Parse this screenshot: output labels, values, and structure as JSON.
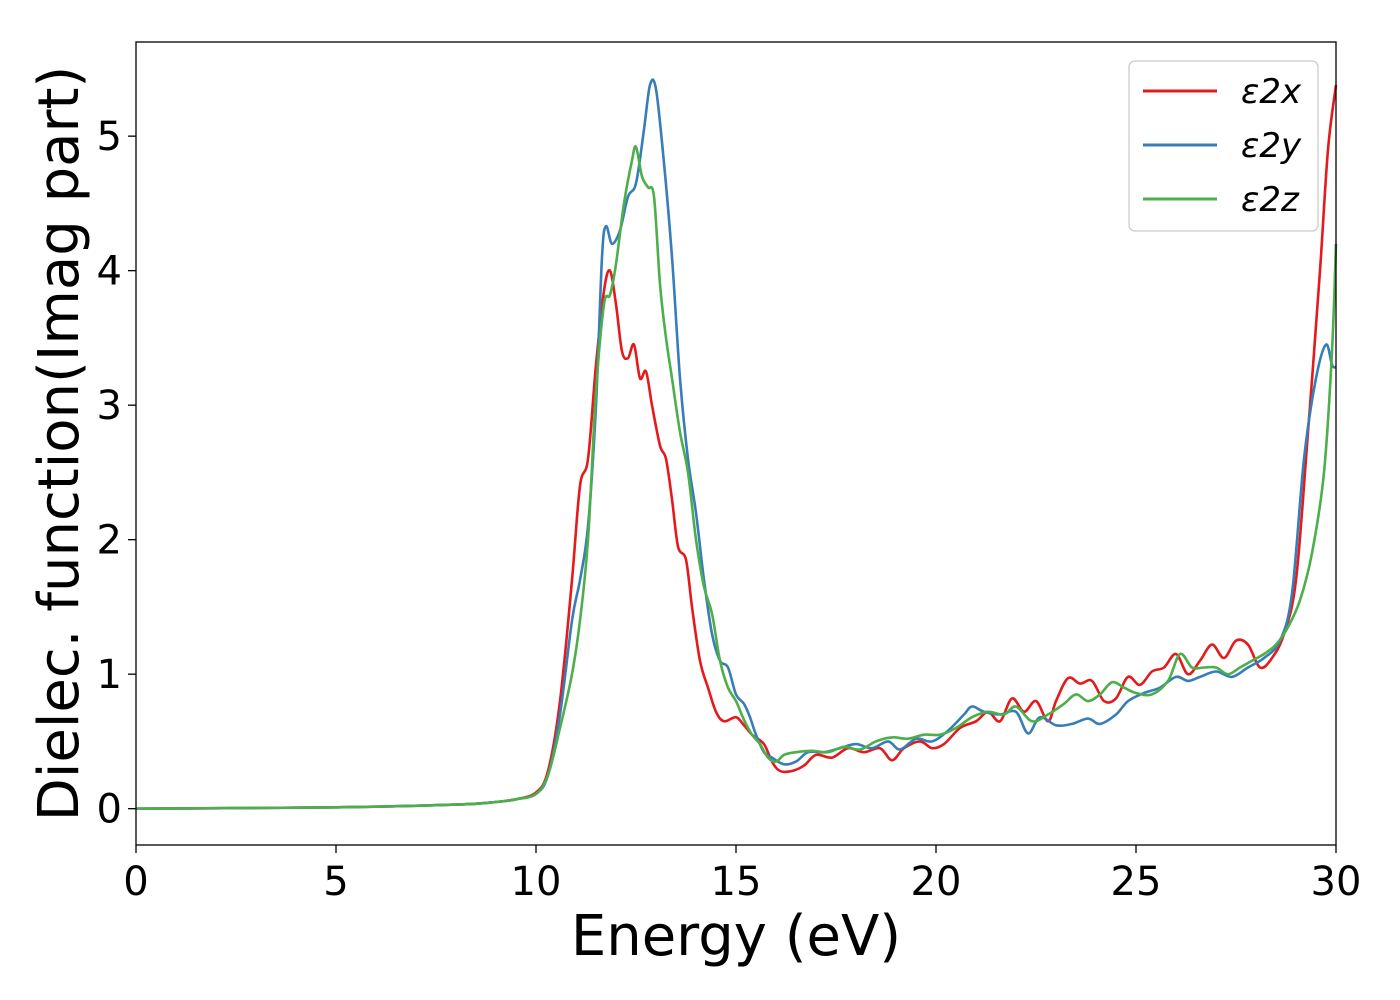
{
  "chart_data": {
    "type": "line",
    "xlabel": "Energy (eV)",
    "ylabel": "Dielec. function(Imag part)",
    "xlim": [
      0,
      30
    ],
    "ylim": [
      -0.27,
      5.7
    ],
    "xticks": [
      0,
      5,
      10,
      15,
      20,
      25,
      30
    ],
    "yticks": [
      0,
      1,
      2,
      3,
      4,
      5
    ],
    "grid": false,
    "legend_position": "top-right",
    "series": [
      {
        "name": "ε2x",
        "color": "#e41a1c",
        "points": [
          [
            0,
            0
          ],
          [
            5,
            0.01
          ],
          [
            8,
            0.03
          ],
          [
            9,
            0.05
          ],
          [
            9.5,
            0.07
          ],
          [
            10,
            0.12
          ],
          [
            10.3,
            0.28
          ],
          [
            10.6,
            0.8
          ],
          [
            10.9,
            1.7
          ],
          [
            11.1,
            2.4
          ],
          [
            11.3,
            2.6
          ],
          [
            11.5,
            3.3
          ],
          [
            11.7,
            3.85
          ],
          [
            11.85,
            4.0
          ],
          [
            12.0,
            3.75
          ],
          [
            12.15,
            3.4
          ],
          [
            12.3,
            3.35
          ],
          [
            12.45,
            3.45
          ],
          [
            12.6,
            3.2
          ],
          [
            12.75,
            3.25
          ],
          [
            12.9,
            3.0
          ],
          [
            13.1,
            2.7
          ],
          [
            13.25,
            2.6
          ],
          [
            13.4,
            2.3
          ],
          [
            13.55,
            1.95
          ],
          [
            13.75,
            1.85
          ],
          [
            13.9,
            1.5
          ],
          [
            14.1,
            1.1
          ],
          [
            14.3,
            0.9
          ],
          [
            14.5,
            0.72
          ],
          [
            14.7,
            0.65
          ],
          [
            15.0,
            0.68
          ],
          [
            15.2,
            0.62
          ],
          [
            15.4,
            0.55
          ],
          [
            15.7,
            0.48
          ],
          [
            15.9,
            0.35
          ],
          [
            16.1,
            0.28
          ],
          [
            16.4,
            0.28
          ],
          [
            16.7,
            0.32
          ],
          [
            17.0,
            0.4
          ],
          [
            17.4,
            0.38
          ],
          [
            17.8,
            0.45
          ],
          [
            18.2,
            0.42
          ],
          [
            18.6,
            0.45
          ],
          [
            18.9,
            0.36
          ],
          [
            19.2,
            0.45
          ],
          [
            19.6,
            0.5
          ],
          [
            19.9,
            0.45
          ],
          [
            20.2,
            0.48
          ],
          [
            20.6,
            0.6
          ],
          [
            21.0,
            0.65
          ],
          [
            21.3,
            0.72
          ],
          [
            21.6,
            0.65
          ],
          [
            21.9,
            0.82
          ],
          [
            22.2,
            0.72
          ],
          [
            22.5,
            0.8
          ],
          [
            22.8,
            0.65
          ],
          [
            23.0,
            0.8
          ],
          [
            23.3,
            0.97
          ],
          [
            23.6,
            0.93
          ],
          [
            23.9,
            0.95
          ],
          [
            24.2,
            0.8
          ],
          [
            24.5,
            0.82
          ],
          [
            24.8,
            0.98
          ],
          [
            25.1,
            0.92
          ],
          [
            25.4,
            1.02
          ],
          [
            25.7,
            1.05
          ],
          [
            26.0,
            1.15
          ],
          [
            26.3,
            1.0
          ],
          [
            26.6,
            1.1
          ],
          [
            26.9,
            1.22
          ],
          [
            27.2,
            1.12
          ],
          [
            27.5,
            1.25
          ],
          [
            27.8,
            1.22
          ],
          [
            28.1,
            1.05
          ],
          [
            28.4,
            1.12
          ],
          [
            28.7,
            1.3
          ],
          [
            29.0,
            1.7
          ],
          [
            29.3,
            2.8
          ],
          [
            29.6,
            4.0
          ],
          [
            29.8,
            4.9
          ],
          [
            30.0,
            5.38
          ]
        ]
      },
      {
        "name": "ε2y",
        "color": "#377eb8",
        "points": [
          [
            0,
            0
          ],
          [
            5,
            0.01
          ],
          [
            8,
            0.03
          ],
          [
            9,
            0.05
          ],
          [
            9.5,
            0.07
          ],
          [
            10,
            0.11
          ],
          [
            10.3,
            0.25
          ],
          [
            10.6,
            0.7
          ],
          [
            10.9,
            1.4
          ],
          [
            11.1,
            1.7
          ],
          [
            11.3,
            2.1
          ],
          [
            11.5,
            3.0
          ],
          [
            11.65,
            4.1
          ],
          [
            11.75,
            4.33
          ],
          [
            11.9,
            4.2
          ],
          [
            12.1,
            4.3
          ],
          [
            12.3,
            4.55
          ],
          [
            12.5,
            4.65
          ],
          [
            12.7,
            5.05
          ],
          [
            12.85,
            5.38
          ],
          [
            13.0,
            5.35
          ],
          [
            13.2,
            4.8
          ],
          [
            13.4,
            4.1
          ],
          [
            13.6,
            3.2
          ],
          [
            13.8,
            2.6
          ],
          [
            14.0,
            2.2
          ],
          [
            14.2,
            1.7
          ],
          [
            14.4,
            1.3
          ],
          [
            14.6,
            1.1
          ],
          [
            14.8,
            1.05
          ],
          [
            15.0,
            0.85
          ],
          [
            15.2,
            0.78
          ],
          [
            15.35,
            0.68
          ],
          [
            15.5,
            0.55
          ],
          [
            15.7,
            0.42
          ],
          [
            15.9,
            0.38
          ],
          [
            16.2,
            0.33
          ],
          [
            16.5,
            0.35
          ],
          [
            16.8,
            0.42
          ],
          [
            17.2,
            0.42
          ],
          [
            17.6,
            0.45
          ],
          [
            18.0,
            0.48
          ],
          [
            18.4,
            0.45
          ],
          [
            18.8,
            0.5
          ],
          [
            19.1,
            0.44
          ],
          [
            19.5,
            0.52
          ],
          [
            19.9,
            0.5
          ],
          [
            20.3,
            0.58
          ],
          [
            20.7,
            0.7
          ],
          [
            20.9,
            0.76
          ],
          [
            21.2,
            0.72
          ],
          [
            21.6,
            0.7
          ],
          [
            22.0,
            0.72
          ],
          [
            22.3,
            0.56
          ],
          [
            22.6,
            0.68
          ],
          [
            23.0,
            0.62
          ],
          [
            23.4,
            0.63
          ],
          [
            23.8,
            0.67
          ],
          [
            24.1,
            0.63
          ],
          [
            24.5,
            0.7
          ],
          [
            24.8,
            0.8
          ],
          [
            25.2,
            0.86
          ],
          [
            25.6,
            0.9
          ],
          [
            26.0,
            0.98
          ],
          [
            26.3,
            0.95
          ],
          [
            26.6,
            0.98
          ],
          [
            27.0,
            1.02
          ],
          [
            27.4,
            0.98
          ],
          [
            27.8,
            1.05
          ],
          [
            28.2,
            1.12
          ],
          [
            28.6,
            1.25
          ],
          [
            28.9,
            1.6
          ],
          [
            29.2,
            2.6
          ],
          [
            29.5,
            3.2
          ],
          [
            29.75,
            3.45
          ],
          [
            29.9,
            3.3
          ],
          [
            30.0,
            3.28
          ]
        ]
      },
      {
        "name": "ε2z",
        "color": "#4daf4a",
        "points": [
          [
            0,
            0
          ],
          [
            5,
            0.01
          ],
          [
            8,
            0.03
          ],
          [
            9,
            0.05
          ],
          [
            9.5,
            0.07
          ],
          [
            10,
            0.11
          ],
          [
            10.3,
            0.25
          ],
          [
            10.6,
            0.6
          ],
          [
            10.9,
            1.0
          ],
          [
            11.1,
            1.4
          ],
          [
            11.3,
            2.0
          ],
          [
            11.5,
            3.1
          ],
          [
            11.7,
            3.75
          ],
          [
            11.85,
            3.82
          ],
          [
            12.0,
            4.05
          ],
          [
            12.2,
            4.5
          ],
          [
            12.4,
            4.82
          ],
          [
            12.5,
            4.92
          ],
          [
            12.65,
            4.7
          ],
          [
            12.8,
            4.62
          ],
          [
            12.95,
            4.55
          ],
          [
            13.1,
            3.9
          ],
          [
            13.25,
            3.5
          ],
          [
            13.4,
            3.2
          ],
          [
            13.6,
            2.8
          ],
          [
            13.8,
            2.5
          ],
          [
            14.0,
            2.0
          ],
          [
            14.2,
            1.65
          ],
          [
            14.4,
            1.45
          ],
          [
            14.6,
            1.1
          ],
          [
            14.8,
            0.9
          ],
          [
            15.0,
            0.8
          ],
          [
            15.2,
            0.66
          ],
          [
            15.4,
            0.55
          ],
          [
            15.6,
            0.48
          ],
          [
            15.8,
            0.38
          ],
          [
            16.0,
            0.35
          ],
          [
            16.2,
            0.4
          ],
          [
            16.5,
            0.42
          ],
          [
            16.9,
            0.43
          ],
          [
            17.3,
            0.42
          ],
          [
            17.7,
            0.46
          ],
          [
            18.1,
            0.44
          ],
          [
            18.5,
            0.5
          ],
          [
            18.9,
            0.53
          ],
          [
            19.3,
            0.52
          ],
          [
            19.7,
            0.55
          ],
          [
            20.1,
            0.55
          ],
          [
            20.5,
            0.6
          ],
          [
            20.9,
            0.68
          ],
          [
            21.3,
            0.72
          ],
          [
            21.7,
            0.7
          ],
          [
            22.0,
            0.76
          ],
          [
            22.4,
            0.65
          ],
          [
            22.8,
            0.7
          ],
          [
            23.2,
            0.78
          ],
          [
            23.5,
            0.85
          ],
          [
            23.8,
            0.8
          ],
          [
            24.1,
            0.85
          ],
          [
            24.4,
            0.94
          ],
          [
            24.7,
            0.9
          ],
          [
            25.0,
            0.86
          ],
          [
            25.4,
            0.85
          ],
          [
            25.8,
            0.95
          ],
          [
            26.1,
            1.15
          ],
          [
            26.4,
            1.05
          ],
          [
            26.7,
            1.05
          ],
          [
            27.0,
            1.05
          ],
          [
            27.3,
            1.0
          ],
          [
            27.6,
            1.05
          ],
          [
            27.9,
            1.1
          ],
          [
            28.2,
            1.15
          ],
          [
            28.5,
            1.22
          ],
          [
            28.8,
            1.35
          ],
          [
            29.1,
            1.55
          ],
          [
            29.4,
            1.9
          ],
          [
            29.7,
            2.5
          ],
          [
            29.9,
            3.4
          ],
          [
            30.0,
            4.2
          ]
        ]
      }
    ]
  }
}
